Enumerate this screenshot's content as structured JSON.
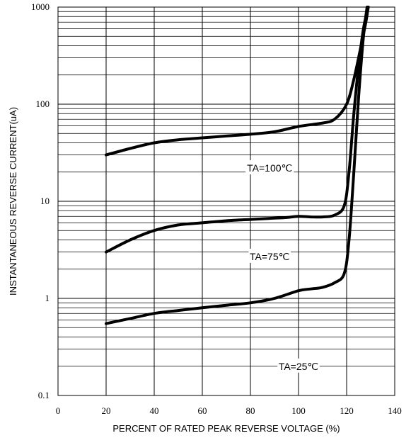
{
  "chart_data": {
    "type": "line",
    "xlabel": "PERCENT OF RATED PEAK REVERSE VOLTAGE (%)",
    "ylabel": "INSTANTANEOUS REVERSE CURRENT(uA)",
    "xlim": [
      0,
      140
    ],
    "ylim": [
      0.1,
      1000
    ],
    "yscale": "log",
    "grid": true,
    "x_ticks": [
      "0",
      "20",
      "40",
      "60",
      "80",
      "100",
      "120",
      "140"
    ],
    "y_ticks": [
      "0.1",
      "1",
      "10",
      "100",
      "1000"
    ],
    "series": [
      {
        "name": "TA=100℃",
        "x": [
          20,
          30,
          40,
          50,
          60,
          70,
          80,
          90,
          100,
          110,
          115,
          120,
          123,
          126,
          128,
          129
        ],
        "y": [
          30,
          35,
          40,
          43,
          45,
          47,
          49,
          52,
          59,
          64,
          70,
          100,
          180,
          400,
          700,
          1000
        ]
      },
      {
        "name": "TA=75℃",
        "x": [
          20,
          30,
          40,
          50,
          60,
          70,
          80,
          90,
          95,
          100,
          105,
          110,
          115,
          119,
          121,
          123,
          125,
          127,
          129
        ],
        "y": [
          3,
          4,
          5,
          5.7,
          6,
          6.3,
          6.5,
          6.7,
          6.8,
          7,
          6.9,
          6.9,
          7.2,
          9,
          20,
          80,
          250,
          600,
          1000
        ]
      },
      {
        "name": "TA=25℃",
        "x": [
          20,
          30,
          40,
          50,
          60,
          70,
          80,
          90,
          100,
          105,
          110,
          115,
          119,
          121,
          123,
          125,
          127,
          128.5
        ],
        "y": [
          0.55,
          0.62,
          0.7,
          0.75,
          0.8,
          0.85,
          0.9,
          1.0,
          1.2,
          1.25,
          1.3,
          1.45,
          1.8,
          4,
          20,
          120,
          500,
          1000
        ]
      }
    ],
    "annotations": [
      {
        "text": "TA=100℃",
        "x": 88,
        "y": 22
      },
      {
        "text": "TA=75℃",
        "x": 88,
        "y": 2.7
      },
      {
        "text": "TA=25℃",
        "x": 100,
        "y": 0.2
      }
    ]
  }
}
